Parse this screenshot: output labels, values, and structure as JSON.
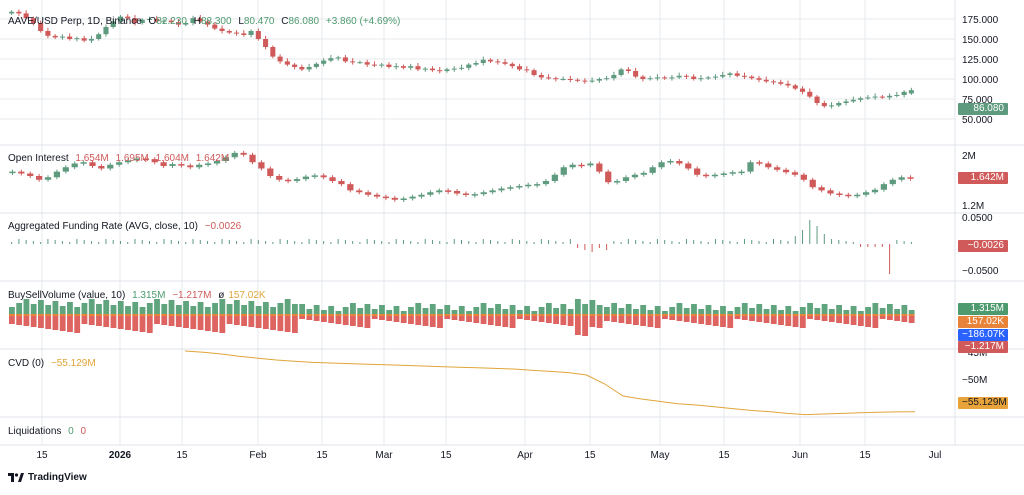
{
  "colors": {
    "up": "#5e9a7e",
    "down": "#d05a5a",
    "vol_up": "#4e9a6f",
    "vol_down": "#d9534f",
    "vol_delta": "#e8833a",
    "cvd": "#e0a53a",
    "delta_badge": "#2962ff",
    "grid": "#e6e8ec"
  },
  "main": {
    "symbol": "AAVE/USD Perp, 1D, Binance",
    "o_label": "O",
    "o": "82.230",
    "h_label": "H",
    "h": "88.300",
    "l_label": "L",
    "l": "80.470",
    "c_label": "C",
    "c": "86.080",
    "change": "+3.860 (+4.69%)",
    "badge": "86.080",
    "ticks": [
      "175.000",
      "150.000",
      "125.000",
      "100.000",
      "75.000",
      "50.000"
    ]
  },
  "oi": {
    "title": "Open Interest",
    "v1": "1.654M",
    "v2": "1.695M",
    "v3": "1.604M",
    "v4": "1.642M",
    "badge": "1.642M",
    "ticks": [
      "2M",
      "1.2M"
    ]
  },
  "funding": {
    "title": "Aggregated Funding Rate (AVG, close, 10)",
    "value": "−0.0026",
    "badge": "−0.0026",
    "ticks": [
      "0.0500",
      "−0.0500"
    ]
  },
  "bsv": {
    "title": "BuySellVolume (value, 10)",
    "buy": "1.315M",
    "sell": "−1.217M",
    "delta_symbol": "ø",
    "delta": "157.02K",
    "badge_buy": "1.315M",
    "badge_delta": "157.02K",
    "badge_net": "−186.07K",
    "badge_sell": "−1.217M"
  },
  "cvd": {
    "title": "CVD (0)",
    "value": "−55.129M",
    "badge": "−55.129M",
    "ticks": [
      "−45M",
      "−50M"
    ]
  },
  "liq": {
    "title": "Liquidations",
    "v1": "0",
    "v2": "0"
  },
  "xaxis": [
    "15",
    "2026",
    "15",
    "Feb",
    "15",
    "Mar",
    "15",
    "Apr",
    "15",
    "May",
    "15",
    "Jun",
    "15",
    "Jul"
  ],
  "brand": "TradingView",
  "chart_data": [
    {
      "type": "candlestick",
      "name": "AAVE/USD Perp, 1D, Binance",
      "y_ticks": [
        175,
        150,
        125,
        100,
        75,
        50
      ],
      "x_labels": [
        "15",
        "2026",
        "15",
        "Feb",
        "15",
        "Mar",
        "15",
        "Apr",
        "15",
        "May",
        "15",
        "Jun",
        "15",
        "Jul"
      ],
      "close": [
        184,
        182,
        176,
        170,
        160,
        154,
        152,
        153,
        150,
        151,
        148,
        150,
        156,
        165,
        172,
        178,
        176,
        170,
        174,
        175,
        172,
        173,
        171,
        168,
        170,
        176,
        172,
        168,
        163,
        160,
        158,
        157,
        155,
        160,
        150,
        140,
        128,
        122,
        118,
        115,
        112,
        115,
        119,
        123,
        126,
        127,
        122,
        121,
        121,
        118,
        117,
        118,
        115,
        116,
        114,
        116,
        112,
        113,
        111,
        110,
        112,
        113,
        114,
        118,
        120,
        124,
        122,
        121,
        119,
        116,
        112,
        111,
        105,
        102,
        101,
        100,
        100,
        99,
        98,
        97,
        98,
        100,
        101,
        105,
        112,
        110,
        103,
        100,
        101,
        102,
        101,
        102,
        104,
        103,
        100,
        101,
        102,
        103,
        105,
        107,
        104,
        103,
        101,
        99,
        97,
        96,
        94,
        92,
        88,
        84,
        78,
        70,
        66,
        67,
        70,
        72,
        74,
        76,
        77,
        78,
        77,
        79,
        80,
        84,
        86
      ],
      "open": [
        182,
        184,
        182,
        176,
        170,
        160,
        154,
        152,
        153,
        150,
        151,
        148,
        150,
        156,
        165,
        172,
        178,
        176,
        170,
        174,
        175,
        172,
        173,
        171,
        168,
        170,
        176,
        172,
        168,
        163,
        160,
        158,
        157,
        155,
        160,
        150,
        140,
        128,
        122,
        118,
        115,
        112,
        115,
        119,
        123,
        126,
        127,
        122,
        121,
        121,
        118,
        117,
        118,
        115,
        116,
        114,
        116,
        112,
        113,
        111,
        110,
        112,
        113,
        114,
        118,
        120,
        124,
        122,
        121,
        119,
        116,
        112,
        111,
        105,
        102,
        101,
        100,
        100,
        99,
        98,
        97,
        98,
        100,
        101,
        105,
        112,
        110,
        103,
        100,
        101,
        102,
        101,
        102,
        104,
        103,
        100,
        101,
        102,
        103,
        105,
        107,
        104,
        103,
        101,
        99,
        97,
        96,
        94,
        92,
        88,
        84,
        78,
        70,
        66,
        67,
        70,
        72,
        74,
        76,
        77,
        78,
        77,
        79,
        80,
        82
      ]
    },
    {
      "type": "line",
      "name": "Open Interest",
      "values": [
        1.75,
        1.72,
        1.68,
        1.62,
        1.66,
        1.75,
        1.82,
        1.88,
        1.9,
        1.84,
        1.8,
        1.86,
        1.9,
        1.93,
        1.96,
        1.95,
        1.9,
        1.84,
        1.87,
        1.85,
        1.82,
        1.86,
        1.88,
        1.92,
        1.98,
        2.05,
        2.02,
        1.9,
        1.8,
        1.68,
        1.62,
        1.6,
        1.63,
        1.67,
        1.69,
        1.66,
        1.6,
        1.55,
        1.45,
        1.42,
        1.38,
        1.35,
        1.33,
        1.3,
        1.32,
        1.35,
        1.38,
        1.42,
        1.45,
        1.44,
        1.4,
        1.38,
        1.39,
        1.42,
        1.45,
        1.48,
        1.5,
        1.52,
        1.54,
        1.55,
        1.6,
        1.7,
        1.82,
        1.86,
        1.85,
        1.88,
        1.75,
        1.58,
        1.6,
        1.66,
        1.7,
        1.73,
        1.82,
        1.9,
        1.92,
        1.88,
        1.8,
        1.7,
        1.68,
        1.7,
        1.72,
        1.74,
        1.75,
        1.9,
        1.88,
        1.82,
        1.78,
        1.74,
        1.7,
        1.62,
        1.5,
        1.45,
        1.4,
        1.38,
        1.36,
        1.38,
        1.42,
        1.46,
        1.55,
        1.62,
        1.66,
        1.64
      ]
    },
    {
      "type": "bar",
      "name": "Aggregated Funding Rate (AVG, close, 10)",
      "y_ticks": [
        0.05,
        -0.05
      ]
    },
    {
      "type": "bar",
      "name": "BuySellVolume (value, 10)",
      "buy_last": 1.315,
      "sell_last": -1.217,
      "delta_last": 0.157
    },
    {
      "type": "line",
      "name": "CVD (0)",
      "y_ticks": [
        -45,
        -50
      ],
      "last": -55.129,
      "values": [
        -45.0,
        -45.2,
        -45.5,
        -45.9,
        -46.2,
        -46.5,
        -46.7,
        -46.9,
        -47.0,
        -47.1,
        -47.2,
        -47.3,
        -47.4,
        -47.5,
        -47.6,
        -47.7,
        -47.8,
        -47.9,
        -48.0,
        -48.2,
        -48.4,
        -48.6,
        -49.0,
        -50.5,
        -52.5,
        -53.0,
        -53.4,
        -53.8,
        -54.0,
        -54.3,
        -54.6,
        -54.9,
        -55.1,
        -55.4,
        -55.6,
        -55.5,
        -55.4,
        -55.3,
        -55.2,
        -55.15,
        -55.13
      ]
    },
    {
      "type": "bar",
      "name": "Liquidations",
      "values": [
        0,
        0
      ]
    }
  ]
}
